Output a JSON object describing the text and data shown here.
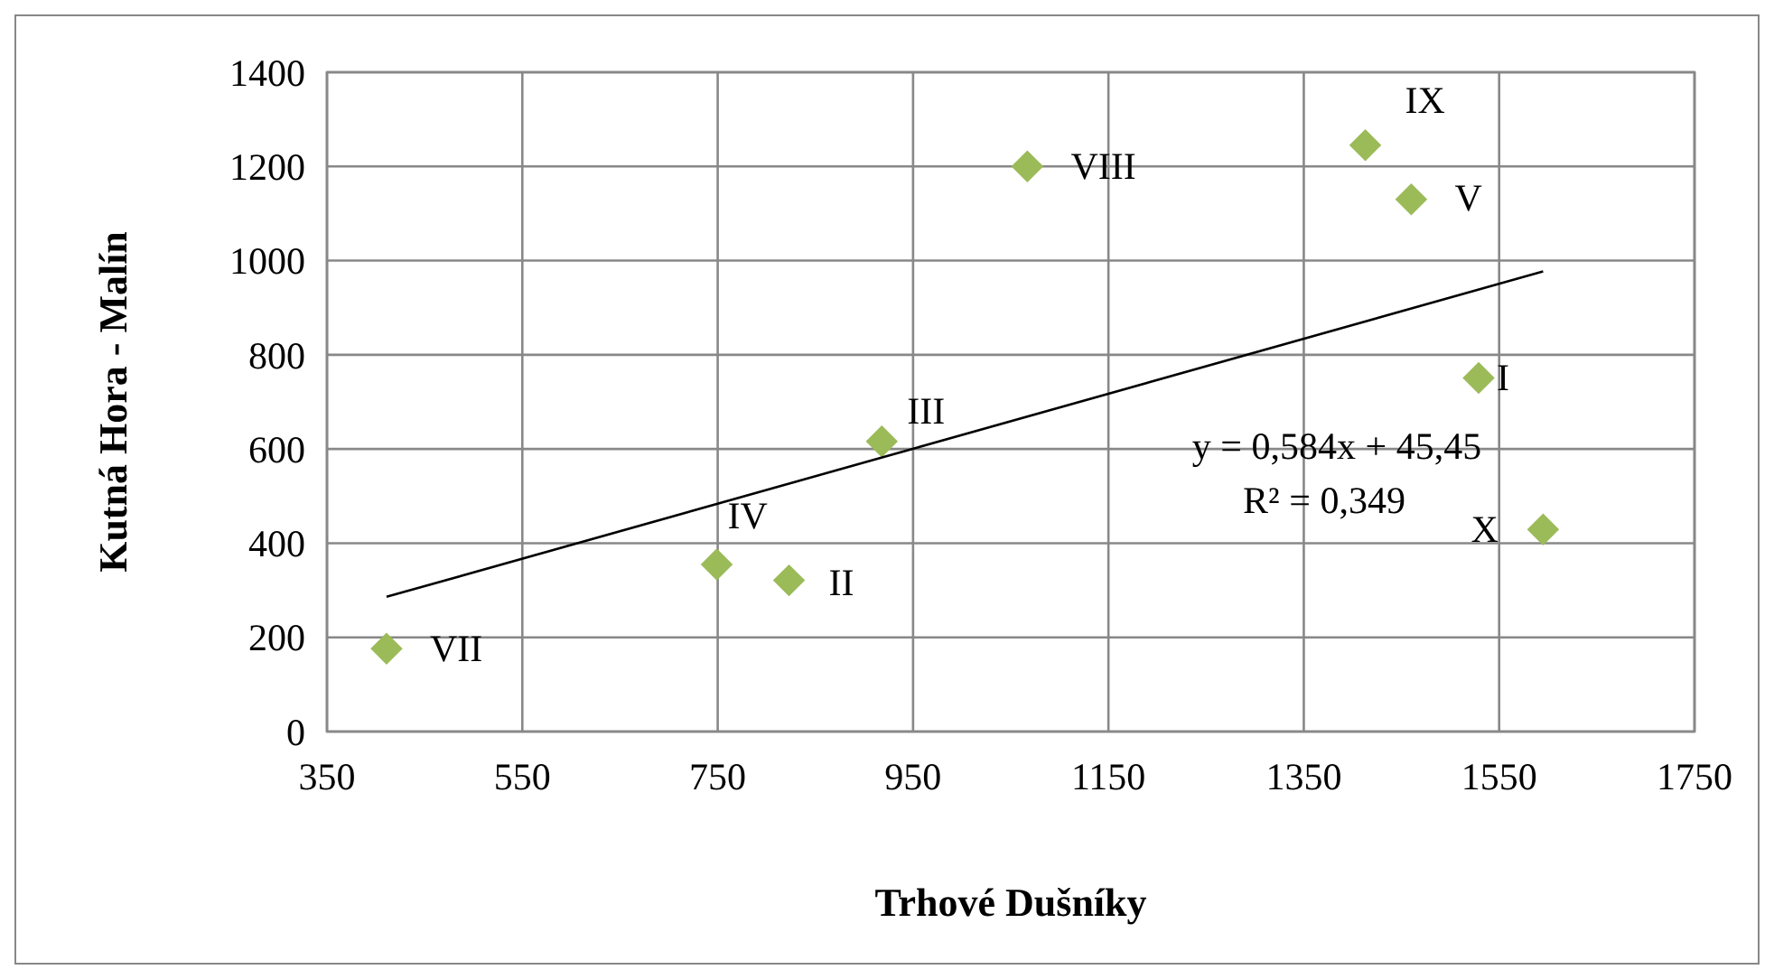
{
  "chart_data": {
    "type": "scatter",
    "xlabel": "Trhové Dušníky",
    "ylabel": "Kutná Hora - Malín",
    "xlim": [
      350,
      1750
    ],
    "xticks": [
      350,
      550,
      750,
      950,
      1150,
      1350,
      1550,
      1750
    ],
    "ylim": [
      0,
      1400
    ],
    "yticks": [
      0,
      200,
      400,
      600,
      800,
      1000,
      1200,
      1400
    ],
    "grid": true,
    "marker": "diamond",
    "series": [
      {
        "color": "#9bbb59",
        "x": [
          411,
          749,
          823,
          918,
          1067,
          1413,
          1460,
          1529,
          1595
        ],
        "values": [
          176,
          355,
          321,
          616,
          1200,
          1245,
          1130,
          751,
          429
        ]
      },
      {
        "type": "line",
        "color": "#000000",
        "marker": "none",
        "x": [
          411,
          1595
        ],
        "values": [
          286,
          977
        ]
      }
    ],
    "annotations": [
      {
        "text": "VII",
        "x": 411,
        "y": 176
      },
      {
        "text": "IV",
        "x": 749,
        "y": 355
      },
      {
        "text": "II",
        "x": 823,
        "y": 321
      },
      {
        "text": "III",
        "x": 918,
        "y": 616
      },
      {
        "text": "VIII",
        "x": 1067,
        "y": 1200
      },
      {
        "text": "IX",
        "x": 1413,
        "y": 1245
      },
      {
        "text": "V",
        "x": 1460,
        "y": 1130
      },
      {
        "text": "I",
        "x": 1529,
        "y": 751
      },
      {
        "text": "X",
        "x": 1595,
        "y": 429
      },
      "y = 0,584x + 45,45",
      "R² = 0,349"
    ]
  }
}
